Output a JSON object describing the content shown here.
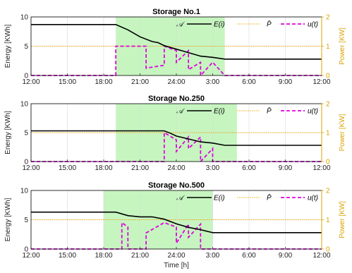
{
  "chart_data": [
    {
      "type": "line",
      "title": "Storage No.1",
      "ylabel": "Energy [KWh]",
      "y2label": "Power [KW]",
      "xlabel": "",
      "x_unit": "hour of day (12:00 start, next day 12:00 end)",
      "xticks": [
        "12:00",
        "15:00",
        "18:00",
        "21:00",
        "24:00",
        "3:00",
        "6:00",
        "9:00",
        "12:00"
      ],
      "xlim": [
        "12:00",
        "12:00"
      ],
      "ylim": [
        0,
        10
      ],
      "yticks": [
        "0",
        "5",
        "10"
      ],
      "y2lim": [
        0,
        2
      ],
      "y2ticks": [
        "0",
        "1",
        "2"
      ],
      "grid": true,
      "availability_window": [
        "19:00",
        "4:00"
      ],
      "legend": [
        "𝒜",
        "E(i)",
        "P̄",
        "u(t)"
      ],
      "P_bar": 1,
      "E": {
        "x": [
          "12:00",
          "19:00",
          "20:00",
          "21:00",
          "22:00",
          "22:30",
          "23:00",
          "24:00",
          "1:00",
          "2:00",
          "3:00",
          "4:00",
          "12:00"
        ],
        "y": [
          8.7,
          8.7,
          7.8,
          6.6,
          5.8,
          5.6,
          5.1,
          4.5,
          3.9,
          3.3,
          3.1,
          2.8,
          2.8
        ]
      },
      "u": {
        "x": [
          "12:00",
          "19:00",
          "19:00",
          "21:30",
          "21:30",
          "23:00",
          "23:00",
          "24:00",
          "24:00",
          "1:00",
          "1:00",
          "2:00",
          "2:00",
          "3:00",
          "3:00",
          "4:00",
          "4:00",
          "12:00"
        ],
        "y": [
          0,
          0,
          1,
          1,
          0.25,
          0.35,
          1,
          0.85,
          0.45,
          0.85,
          0.2,
          0.45,
          0,
          0.45,
          0.45,
          0,
          0,
          0
        ]
      }
    },
    {
      "type": "line",
      "title": "Storage No.250",
      "ylabel": "Energy [KWh]",
      "y2label": "Power [KW]",
      "xlabel": "",
      "xticks": [
        "12:00",
        "15:00",
        "18:00",
        "21:00",
        "24:00",
        "3:00",
        "6:00",
        "9:00",
        "12:00"
      ],
      "xlim": [
        "12:00",
        "12:00"
      ],
      "ylim": [
        0,
        10
      ],
      "yticks": [
        "0",
        "5",
        "10"
      ],
      "y2lim": [
        0,
        2
      ],
      "y2ticks": [
        "0",
        "1",
        "2"
      ],
      "grid": true,
      "availability_window": [
        "19:00",
        "5:00"
      ],
      "legend": [
        "𝒜",
        "E(i)",
        "P̄",
        "u(t)"
      ],
      "P_bar": 1,
      "E": {
        "x": [
          "12:00",
          "23:00",
          "23:30",
          "24:00",
          "1:00",
          "2:00",
          "3:00",
          "4:00",
          "12:00"
        ],
        "y": [
          5.3,
          5.3,
          4.9,
          4.4,
          3.9,
          3.4,
          3.2,
          2.8,
          2.8
        ]
      },
      "u": {
        "x": [
          "12:00",
          "23:00",
          "23:00",
          "24:00",
          "24:00",
          "1:00",
          "1:00",
          "2:00",
          "2:00",
          "3:00",
          "3:00",
          "12:00"
        ],
        "y": [
          0,
          0,
          1,
          0.75,
          0.35,
          0.85,
          0.45,
          0.85,
          0,
          0.45,
          0,
          0
        ]
      }
    },
    {
      "type": "line",
      "title": "Storage No.500",
      "ylabel": "Energy [KWh]",
      "y2label": "Power [KW]",
      "xlabel": "Time [h]",
      "xticks": [
        "12:00",
        "15:00",
        "18:00",
        "21:00",
        "24:00",
        "3:00",
        "6:00",
        "9:00",
        "12:00"
      ],
      "xlim": [
        "12:00",
        "12:00"
      ],
      "ylim": [
        0,
        10
      ],
      "yticks": [
        "0",
        "5",
        "10"
      ],
      "y2lim": [
        0,
        2
      ],
      "y2ticks": [
        "0",
        "1",
        "2"
      ],
      "grid": true,
      "availability_window": [
        "18:00",
        "3:00"
      ],
      "legend": [
        "𝒜",
        "E(i)",
        "P̄",
        "u(t)"
      ],
      "P_bar": 1,
      "E": {
        "x": [
          "12:00",
          "19:00",
          "20:00",
          "21:00",
          "22:00",
          "23:00",
          "24:00",
          "1:00",
          "2:00",
          "3:00",
          "12:00"
        ],
        "y": [
          6.3,
          6.3,
          5.7,
          5.5,
          5.5,
          5.1,
          4.3,
          3.7,
          3.3,
          2.8,
          2.8
        ]
      },
      "u": {
        "x": [
          "12:00",
          "19:30",
          "19:30",
          "20:00",
          "20:00",
          "21:30",
          "21:30",
          "23:00",
          "23:00",
          "24:00",
          "24:00",
          "1:00",
          "1:00",
          "2:00",
          "2:00",
          "12:00"
        ],
        "y": [
          0,
          0,
          0.9,
          0.75,
          0,
          0,
          0.55,
          0.9,
          0.9,
          0.75,
          0.2,
          0.85,
          0.4,
          0.85,
          0,
          0
        ]
      }
    }
  ],
  "colors": {
    "window_fill": "#c6f5c0",
    "energy": "#000000",
    "pbar": "#f0a800",
    "u": "#e000e0",
    "right_axis": "#d9a400"
  }
}
